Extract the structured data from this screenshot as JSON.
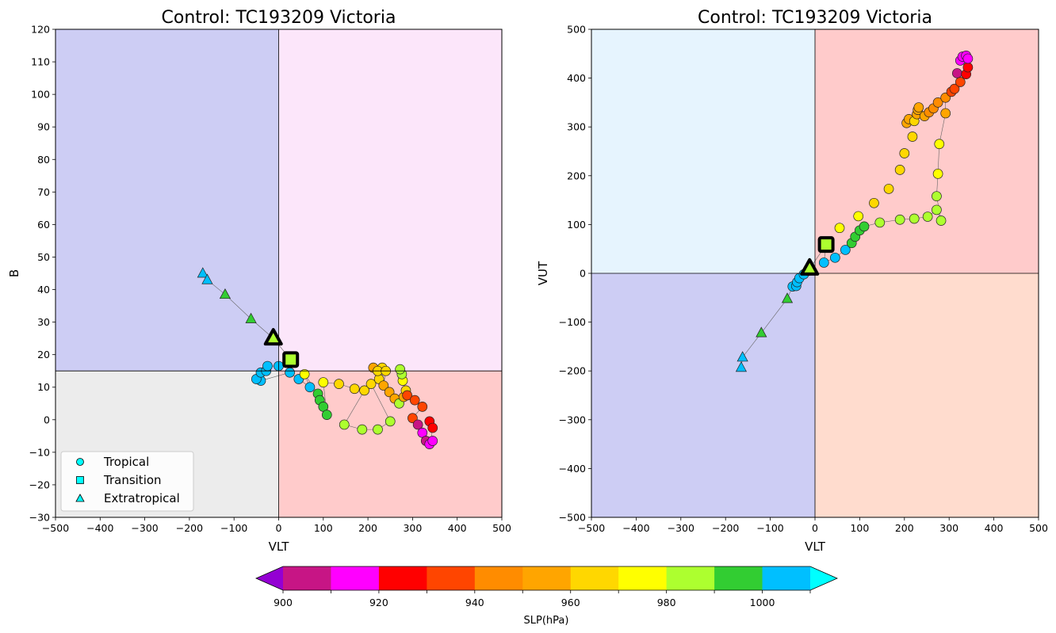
{
  "chart_data": [
    {
      "type": "scatter",
      "title": "Control: TC193209 Victoria",
      "xlabel": "VLT",
      "ylabel": "B",
      "xlim": [
        -500,
        500
      ],
      "ylim": [
        -30,
        120
      ],
      "xticks": [
        -500,
        -400,
        -300,
        -200,
        -100,
        0,
        100,
        200,
        300,
        400,
        500
      ],
      "yticks": [
        -30,
        -20,
        -10,
        0,
        10,
        20,
        30,
        40,
        50,
        60,
        70,
        80,
        90,
        100,
        110,
        120
      ],
      "xticklabels": [
        "−500",
        "−400",
        "−300",
        "−200",
        "−100",
        "0",
        "100",
        "200",
        "300",
        "400",
        "500"
      ],
      "yticklabels": [
        "−30",
        "−20",
        "−10",
        "0",
        "10",
        "20",
        "30",
        "40",
        "50",
        "60",
        "70",
        "80",
        "90",
        "100",
        "110",
        "120"
      ],
      "grid": false,
      "divider_x": 0,
      "divider_y": 15,
      "quadrants": [
        {
          "x": [
            -500,
            0
          ],
          "y": [
            15,
            120
          ],
          "color": "#cdcdf4"
        },
        {
          "x": [
            0,
            500
          ],
          "y": [
            15,
            120
          ],
          "color": "#fce6fa"
        },
        {
          "x": [
            -500,
            0
          ],
          "y": [
            -30,
            15
          ],
          "color": "#ececec"
        },
        {
          "x": [
            0,
            500
          ],
          "y": [
            -30,
            15
          ],
          "color": "#ffcbcb"
        }
      ],
      "legend": {
        "placement": "lower-left",
        "entries": [
          {
            "label": "Tropical",
            "marker": "circle",
            "color": "#00ffff"
          },
          {
            "label": "Transition",
            "marker": "square",
            "color": "#00ffff"
          },
          {
            "label": "Extratropical",
            "marker": "triangle",
            "color": "#00ffff"
          }
        ]
      },
      "points": [
        [
          -170,
          45,
          1002,
          "t"
        ],
        [
          -160,
          43,
          1002,
          "t"
        ],
        [
          -120,
          38.5,
          992,
          "t"
        ],
        [
          -62,
          31,
          992,
          "t"
        ],
        [
          -40,
          12,
          1002,
          "c"
        ],
        [
          -50,
          12.5,
          1002,
          "c"
        ],
        [
          -40,
          14.5,
          1002,
          "c"
        ],
        [
          -28,
          15,
          1002,
          "c"
        ],
        [
          -25,
          16.5,
          1002,
          "c"
        ],
        [
          0,
          16.5,
          1002,
          "c"
        ],
        [
          25,
          14.5,
          1002,
          "c"
        ],
        [
          45,
          12.5,
          1002,
          "c"
        ],
        [
          70,
          10,
          1002,
          "c"
        ],
        [
          88,
          8,
          992,
          "c"
        ],
        [
          92,
          6,
          992,
          "c"
        ],
        [
          100,
          4,
          992,
          "c"
        ],
        [
          108,
          1.5,
          992,
          "c"
        ],
        [
          58,
          14,
          975,
          "c"
        ],
        [
          100,
          11.5,
          975,
          "c"
        ],
        [
          135,
          11,
          965,
          "c"
        ],
        [
          170,
          9.5,
          965,
          "c"
        ],
        [
          192,
          9,
          965,
          "c"
        ],
        [
          147,
          -1.5,
          985,
          "c"
        ],
        [
          187,
          -3,
          985,
          "c"
        ],
        [
          222,
          -3,
          985,
          "c"
        ],
        [
          250,
          -0.5,
          985,
          "c"
        ],
        [
          207,
          11,
          965,
          "c"
        ],
        [
          225,
          12.5,
          965,
          "c"
        ],
        [
          212,
          16,
          955,
          "c"
        ],
        [
          232,
          16,
          965,
          "c"
        ],
        [
          222,
          15,
          965,
          "c"
        ],
        [
          240,
          15,
          965,
          "c"
        ],
        [
          235,
          10.5,
          955,
          "c"
        ],
        [
          248,
          8.5,
          955,
          "c"
        ],
        [
          260,
          6.5,
          955,
          "c"
        ],
        [
          270,
          5,
          985,
          "c"
        ],
        [
          280,
          7,
          955,
          "c"
        ],
        [
          285,
          9,
          965,
          "c"
        ],
        [
          278,
          12,
          975,
          "c"
        ],
        [
          276,
          14,
          985,
          "c"
        ],
        [
          272,
          15.5,
          985,
          "c"
        ],
        [
          288,
          7.5,
          935,
          "c"
        ],
        [
          305,
          6,
          935,
          "c"
        ],
        [
          322,
          4,
          935,
          "c"
        ],
        [
          300,
          0.5,
          935,
          "c"
        ],
        [
          312,
          -1.5,
          905,
          "c"
        ],
        [
          322,
          -4,
          915,
          "c"
        ],
        [
          330,
          -6.5,
          905,
          "c"
        ],
        [
          338,
          -7.5,
          915,
          "c"
        ],
        [
          345,
          -6.5,
          915,
          "c"
        ],
        [
          338,
          -0.5,
          925,
          "c"
        ],
        [
          345,
          -2.5,
          925,
          "c"
        ],
        [
          -12,
          25,
          985,
          "tb"
        ],
        [
          27,
          18.5,
          985,
          "sb"
        ]
      ],
      "track_order": [
        0,
        1,
        2,
        3,
        52,
        53,
        9,
        8,
        7,
        6,
        5,
        4,
        10,
        11,
        12,
        17,
        13,
        14,
        15,
        16,
        18,
        19,
        20,
        21,
        22,
        23,
        24,
        25,
        26,
        27,
        28,
        29,
        30,
        31,
        32,
        33,
        34,
        35,
        36,
        37,
        38,
        39,
        40,
        41,
        42,
        43,
        44,
        45,
        46,
        47,
        48,
        49,
        50,
        51
      ]
    },
    {
      "type": "scatter",
      "title": "Control: TC193209 Victoria",
      "xlabel": "VLT",
      "ylabel": "VUT",
      "xlim": [
        -500,
        500
      ],
      "ylim": [
        -500,
        500
      ],
      "xticks": [
        -500,
        -400,
        -300,
        -200,
        -100,
        0,
        100,
        200,
        300,
        400,
        500
      ],
      "yticks": [
        -500,
        -400,
        -300,
        -200,
        -100,
        0,
        100,
        200,
        300,
        400,
        500
      ],
      "xticklabels": [
        "−500",
        "−400",
        "−300",
        "−200",
        "−100",
        "0",
        "100",
        "200",
        "300",
        "400",
        "500"
      ],
      "yticklabels": [
        "−500",
        "−400",
        "−300",
        "−200",
        "−100",
        "0",
        "100",
        "200",
        "300",
        "400",
        "500"
      ],
      "grid": false,
      "divider_x": 0,
      "divider_y": 0,
      "quadrants": [
        {
          "x": [
            -500,
            0
          ],
          "y": [
            0,
            500
          ],
          "color": "#e6f4fe"
        },
        {
          "x": [
            0,
            500
          ],
          "y": [
            0,
            500
          ],
          "color": "#ffcbcb"
        },
        {
          "x": [
            -500,
            0
          ],
          "y": [
            -500,
            0
          ],
          "color": "#cdcdf4"
        },
        {
          "x": [
            0,
            500
          ],
          "y": [
            -500,
            0
          ],
          "color": "#ffdcce"
        }
      ],
      "points": [
        [
          -165,
          -193,
          1002,
          "t"
        ],
        [
          -162,
          -172,
          1002,
          "t"
        ],
        [
          -120,
          -122,
          992,
          "t"
        ],
        [
          -62,
          -52,
          992,
          "t"
        ],
        [
          -50,
          -27,
          1002,
          "c"
        ],
        [
          -42,
          -26,
          1002,
          "c"
        ],
        [
          -40,
          -18,
          1002,
          "c"
        ],
        [
          -35,
          -10,
          1002,
          "c"
        ],
        [
          -25,
          -2,
          1002,
          "c"
        ],
        [
          -15,
          5,
          1002,
          "c"
        ],
        [
          20,
          22,
          1002,
          "c"
        ],
        [
          45,
          32,
          1002,
          "c"
        ],
        [
          68,
          48,
          1002,
          "c"
        ],
        [
          82,
          62,
          992,
          "c"
        ],
        [
          90,
          75,
          992,
          "c"
        ],
        [
          100,
          88,
          992,
          "c"
        ],
        [
          110,
          96,
          992,
          "c"
        ],
        [
          145,
          104,
          985,
          "c"
        ],
        [
          190,
          110,
          985,
          "c"
        ],
        [
          222,
          112,
          985,
          "c"
        ],
        [
          252,
          116,
          985,
          "c"
        ],
        [
          272,
          130,
          985,
          "c"
        ],
        [
          282,
          108,
          985,
          "c"
        ],
        [
          272,
          158,
          985,
          "c"
        ],
        [
          55,
          93,
          975,
          "c"
        ],
        [
          97,
          117,
          975,
          "c"
        ],
        [
          132,
          144,
          965,
          "c"
        ],
        [
          165,
          173,
          965,
          "c"
        ],
        [
          190,
          212,
          965,
          "c"
        ],
        [
          200,
          246,
          965,
          "c"
        ],
        [
          218,
          280,
          965,
          "c"
        ],
        [
          205,
          308,
          955,
          "c"
        ],
        [
          210,
          316,
          955,
          "c"
        ],
        [
          222,
          312,
          965,
          "c"
        ],
        [
          228,
          326,
          955,
          "c"
        ],
        [
          230,
          335,
          955,
          "c"
        ],
        [
          232,
          340,
          955,
          "c"
        ],
        [
          245,
          322,
          955,
          "c"
        ],
        [
          255,
          330,
          945,
          "c"
        ],
        [
          265,
          338,
          945,
          "c"
        ],
        [
          275,
          350,
          945,
          "c"
        ],
        [
          292,
          328,
          955,
          "c"
        ],
        [
          292,
          360,
          945,
          "c"
        ],
        [
          305,
          372,
          935,
          "c"
        ],
        [
          312,
          378,
          935,
          "c"
        ],
        [
          325,
          392,
          935,
          "c"
        ],
        [
          318,
          410,
          905,
          "c"
        ],
        [
          338,
          408,
          925,
          "c"
        ],
        [
          342,
          422,
          925,
          "c"
        ],
        [
          325,
          436,
          915,
          "c"
        ],
        [
          330,
          444,
          915,
          "c"
        ],
        [
          338,
          446,
          915,
          "c"
        ],
        [
          342,
          440,
          915,
          "c"
        ],
        [
          278,
          265,
          975,
          "c"
        ],
        [
          275,
          204,
          975,
          "c"
        ],
        [
          -12,
          10,
          985,
          "tb"
        ],
        [
          25,
          59,
          985,
          "sb"
        ]
      ],
      "track_order": [
        0,
        1,
        2,
        3,
        4,
        5,
        6,
        7,
        8,
        55,
        9,
        56,
        10,
        11,
        12,
        13,
        14,
        15,
        16,
        17,
        18,
        19,
        20,
        21,
        22,
        23,
        54,
        53,
        41,
        42,
        43,
        44,
        45,
        46,
        47,
        48,
        49,
        50,
        51,
        52
      ]
    }
  ],
  "colorbar": {
    "label": "SLP(hPa)",
    "tick_labels": [
      "900",
      "920",
      "940",
      "960",
      "980",
      "1000"
    ],
    "bands": [
      "#c71585",
      "#ff00ff",
      "#ff0000",
      "#ff4500",
      "#ff8c00",
      "#ffa500",
      "#ffd700",
      "#ffff00",
      "#adff2f",
      "#32cd32",
      "#00bfff"
    ],
    "under_color": "#9400d3",
    "over_color": "#00ffff"
  }
}
